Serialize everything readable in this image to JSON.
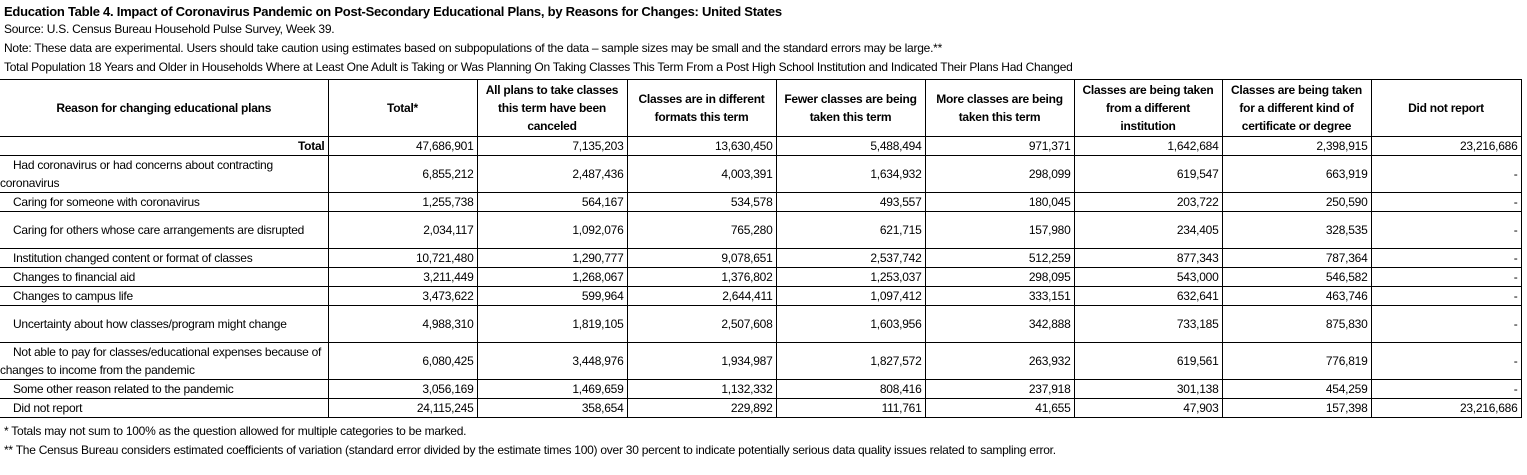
{
  "title": "Education Table 4. Impact of Coronavirus Pandemic on Post-Secondary Educational Plans, by Reasons for Changes: United States",
  "source": "Source: U.S. Census Bureau Household Pulse Survey, Week 39.",
  "note": "Note: These data are experimental. Users should take caution using estimates based on subpopulations of the data – sample sizes may be small and the standard errors may be large.**",
  "population": "Total Population 18 Years and Older in Households Where at Least One Adult is Taking or Was Planning On Taking Classes This Term From a Post High School Institution and Indicated Their Plans Had Changed",
  "headers": [
    "Reason for changing educational plans",
    "Total*",
    "All plans to take classes this term have been canceled",
    "Classes are in different formats this term",
    "Fewer classes are being taken this term",
    "More classes are being taken this term",
    "Classes are being taken from a different institution",
    "Classes are being taken for a different kind of certificate or degree",
    "Did not report"
  ],
  "rows": [
    {
      "reason": "Total",
      "values": [
        "47,686,901",
        "7,135,203",
        "13,630,450",
        "5,488,494",
        "971,371",
        "1,642,684",
        "2,398,915",
        "23,216,686"
      ]
    },
    {
      "reason": "Had coronavirus or had concerns about contracting coronavirus",
      "values": [
        "6,855,212",
        "2,487,436",
        "4,003,391",
        "1,634,932",
        "298,099",
        "619,547",
        "663,919",
        "-"
      ]
    },
    {
      "reason": "Caring for someone with coronavirus",
      "values": [
        "1,255,738",
        "564,167",
        "534,578",
        "493,557",
        "180,045",
        "203,722",
        "250,590",
        "-"
      ]
    },
    {
      "reason": "Caring for others whose care arrangements are disrupted",
      "values": [
        "2,034,117",
        "1,092,076",
        "765,280",
        "621,715",
        "157,980",
        "234,405",
        "328,535",
        "-"
      ]
    },
    {
      "reason": "Institution changed content or format of classes",
      "values": [
        "10,721,480",
        "1,290,777",
        "9,078,651",
        "2,537,742",
        "512,259",
        "877,343",
        "787,364",
        "-"
      ]
    },
    {
      "reason": "Changes to financial aid",
      "values": [
        "3,211,449",
        "1,268,067",
        "1,376,802",
        "1,253,037",
        "298,095",
        "543,000",
        "546,582",
        "-"
      ]
    },
    {
      "reason": "Changes to campus life",
      "values": [
        "3,473,622",
        "599,964",
        "2,644,411",
        "1,097,412",
        "333,151",
        "632,641",
        "463,746",
        "-"
      ]
    },
    {
      "reason": "Uncertainty about how classes/program might change",
      "values": [
        "4,988,310",
        "1,819,105",
        "2,507,608",
        "1,603,956",
        "342,888",
        "733,185",
        "875,830",
        "-"
      ]
    },
    {
      "reason": "Not able to pay for classes/educational expenses because of changes to income from the pandemic",
      "values": [
        "6,080,425",
        "3,448,976",
        "1,934,987",
        "1,827,572",
        "263,932",
        "619,561",
        "776,819",
        "-"
      ]
    },
    {
      "reason": "Some other reason related to the pandemic",
      "values": [
        "3,056,169",
        "1,469,659",
        "1,132,332",
        "808,416",
        "237,918",
        "301,138",
        "454,259",
        "-"
      ]
    },
    {
      "reason": "Did not report",
      "values": [
        "24,115,245",
        "358,654",
        "229,892",
        "111,761",
        "41,655",
        "47,903",
        "157,398",
        "23,216,686"
      ]
    }
  ],
  "footnotes": [
    "* Totals may not sum to 100% as the question allowed for multiple categories to be marked.",
    "** The Census Bureau considers estimated coefficients of variation (standard error divided by the estimate times 100) over 30 percent to indicate potentially serious data quality issues related to sampling error."
  ]
}
